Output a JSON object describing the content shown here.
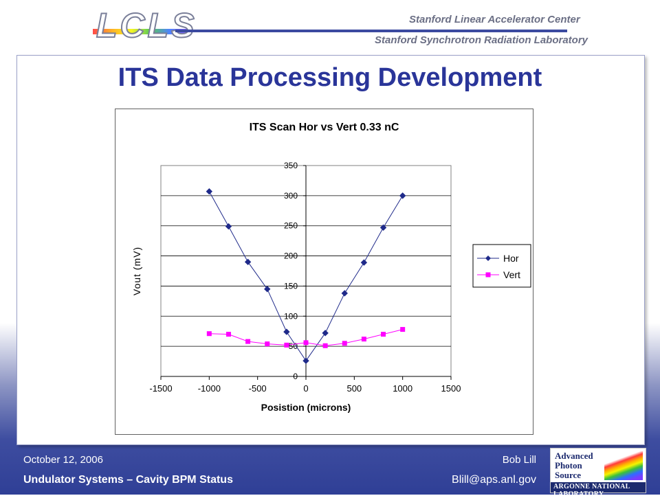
{
  "header": {
    "logo_text": "LCLS",
    "institution_1": "Stanford Linear Accelerator Center",
    "institution_2": "Stanford Synchrotron Radiation Laboratory"
  },
  "slide": {
    "title": "ITS Data Processing Development"
  },
  "chart_data": {
    "type": "line",
    "title": "ITS Scan Hor vs Vert 0.33 nC",
    "xlabel": "Posistion (microns)",
    "ylabel": "Vout (mV)",
    "xlim": [
      -1500,
      1500
    ],
    "ylim": [
      0,
      350
    ],
    "x_ticks": [
      "-1500",
      "-1000",
      "-500",
      "0",
      "500",
      "1000",
      "1500"
    ],
    "y_ticks": [
      "0",
      "50",
      "100",
      "150",
      "200",
      "250",
      "300",
      "350"
    ],
    "grid": "horizontal",
    "legend_position": "right",
    "series": [
      {
        "name": "Hor",
        "color": "#1f2a8a",
        "marker": "diamond",
        "x": [
          -1000,
          -800,
          -600,
          -400,
          -200,
          0,
          200,
          400,
          600,
          800,
          1000
        ],
        "y": [
          307,
          249,
          190,
          145,
          74,
          26,
          72,
          138,
          189,
          247,
          300
        ]
      },
      {
        "name": "Vert",
        "color": "#ff00ff",
        "marker": "square",
        "x": [
          -1000,
          -800,
          -600,
          -400,
          -200,
          0,
          200,
          400,
          600,
          800,
          1000
        ],
        "y": [
          71,
          70,
          58,
          54,
          52,
          56,
          51,
          55,
          62,
          70,
          78
        ]
      }
    ]
  },
  "footer": {
    "date": "October 12, 2006",
    "name": "Bob Lill",
    "subtitle": "Undulator Systems – Cavity BPM Status",
    "email": "Blill@aps.anl.gov"
  },
  "aps_logo": {
    "line1": "Advanced",
    "line2": "Photon",
    "line3": "Source",
    "lab": "ARGONNE NATIONAL LABORATORY"
  }
}
